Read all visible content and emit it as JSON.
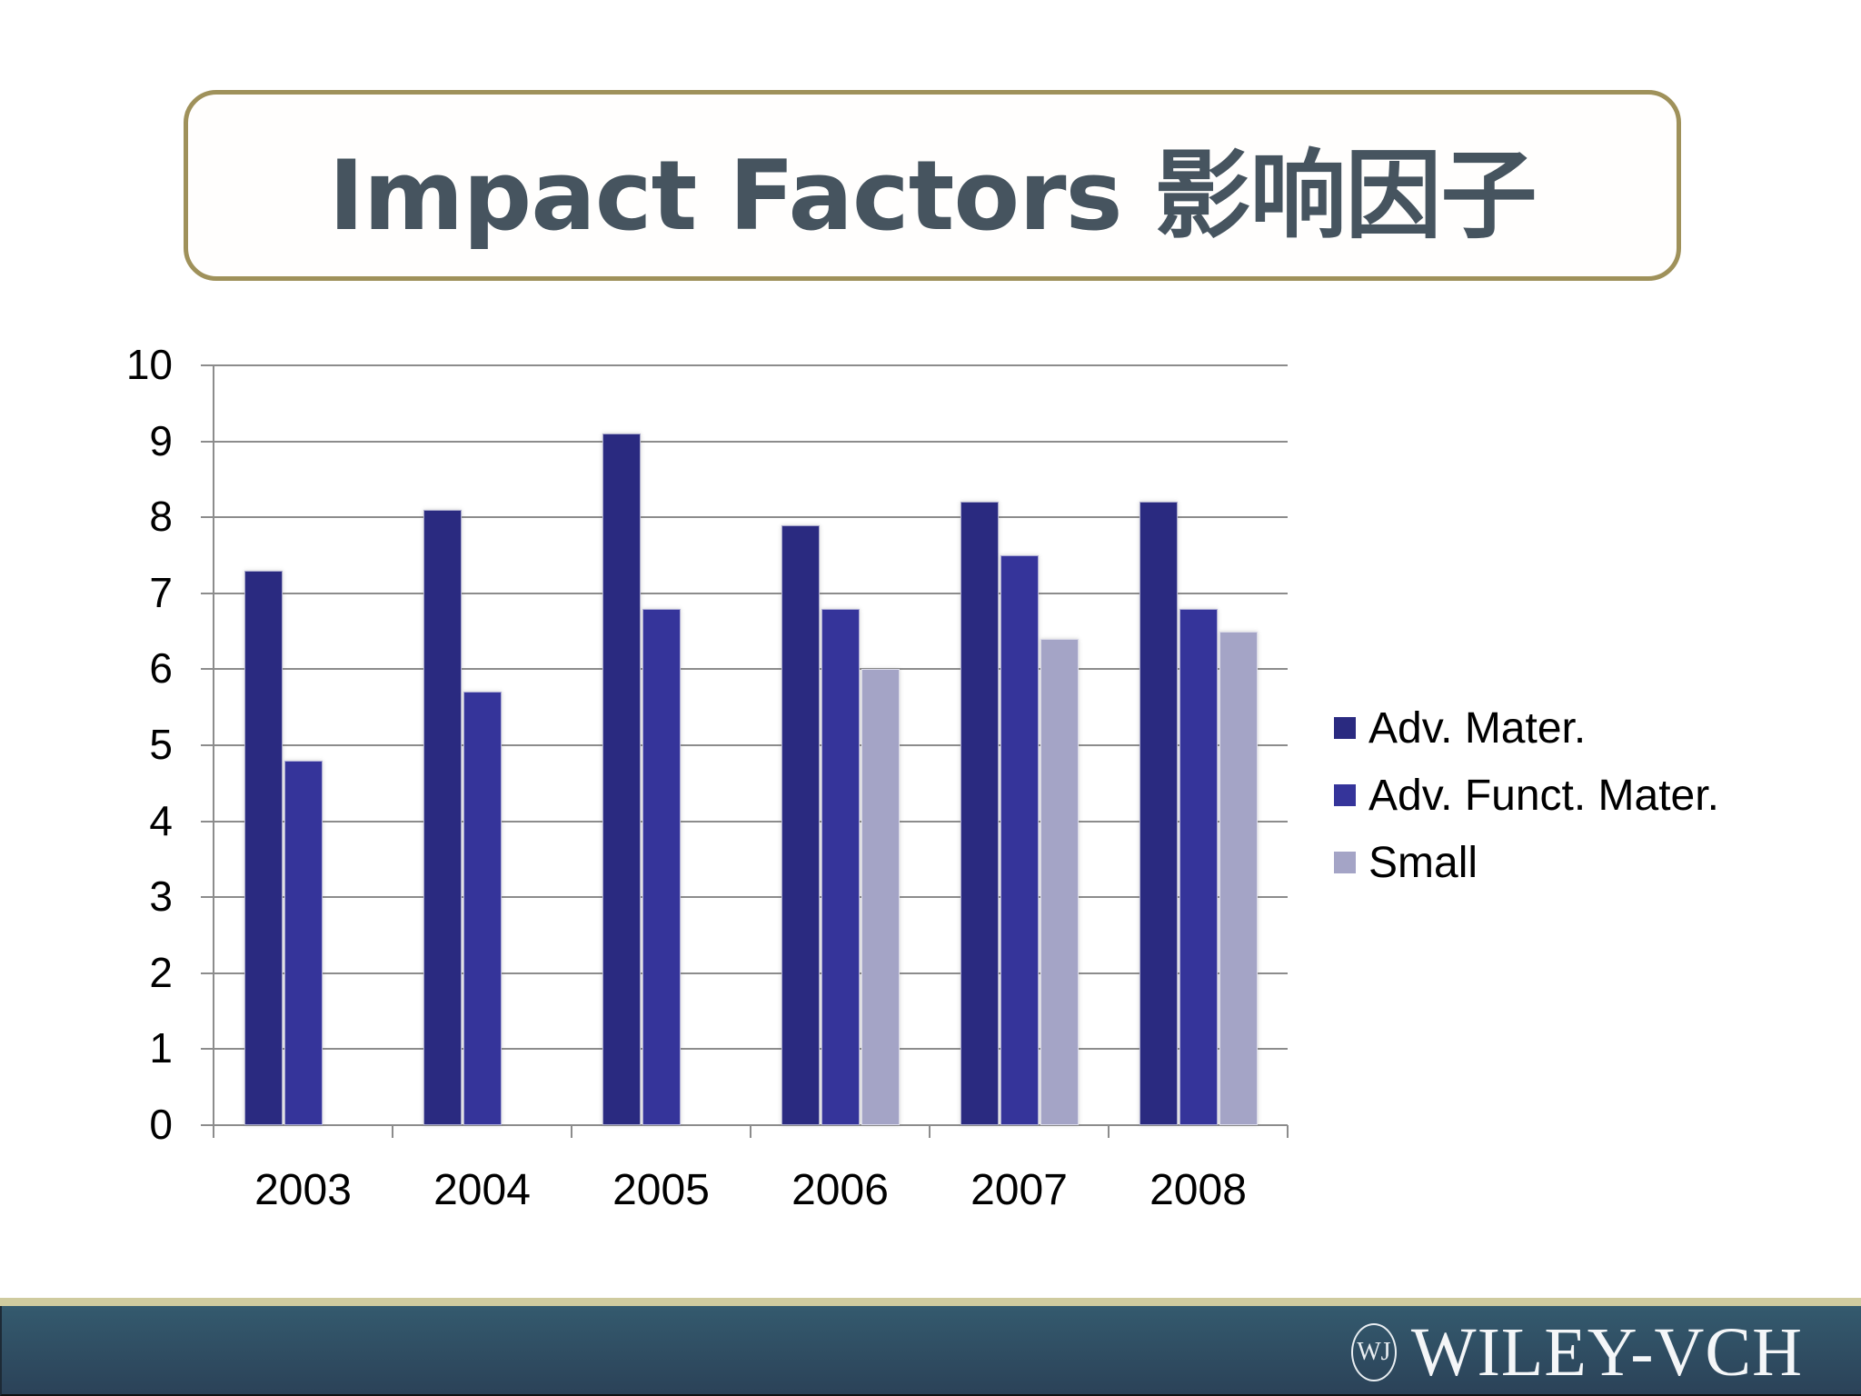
{
  "slide": {
    "title": "Impact Factors 影响因子",
    "footer_logo_text": "WILEY-VCH",
    "footer_logo_mark": "WJ"
  },
  "colors": {
    "title_text": "#46545f",
    "title_border": "#9f915a",
    "footer_stripe": "#cfcb9f",
    "footer_bg": "#2f4d63",
    "series_adv_mater": "#2a2a80",
    "series_adv_funct_mater": "#35349a",
    "series_small": "#a4a4c6"
  },
  "chart_data": {
    "type": "bar",
    "title": "Impact Factors 影响因子",
    "xlabel": "",
    "ylabel": "",
    "categories": [
      "2003",
      "2004",
      "2005",
      "2006",
      "2007",
      "2008"
    ],
    "series": [
      {
        "name": "Adv. Mater.",
        "color": "#2a2a80",
        "values": [
          7.3,
          8.1,
          9.1,
          7.9,
          8.2,
          8.2
        ]
      },
      {
        "name": "Adv. Funct. Mater.",
        "color": "#35349a",
        "values": [
          4.8,
          5.7,
          6.8,
          6.8,
          7.5,
          6.8
        ]
      },
      {
        "name": "Small",
        "color": "#a4a4c6",
        "values": [
          null,
          null,
          null,
          6.0,
          6.4,
          6.5
        ]
      }
    ],
    "ylim": [
      0,
      10
    ],
    "yticks": [
      "0",
      "1",
      "2",
      "3",
      "4",
      "5",
      "6",
      "7",
      "8",
      "9",
      "10"
    ],
    "grid": true,
    "legend_position": "right"
  }
}
